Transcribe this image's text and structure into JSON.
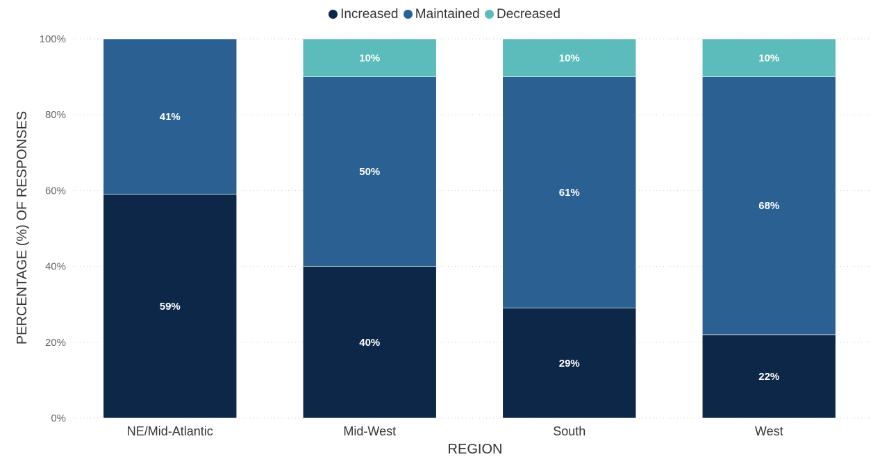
{
  "chart_data": {
    "type": "bar",
    "stacked": true,
    "title": "",
    "xlabel": "REGION",
    "ylabel": "PERCENTAGE (%) OF RESPONSES",
    "ylim": [
      0,
      100
    ],
    "yticks": [
      "0%",
      "20%",
      "40%",
      "60%",
      "80%",
      "100%"
    ],
    "grid": "horizontal dotted",
    "legend_position": "top-center",
    "categories": [
      "NE/Mid-Atlantic",
      "Mid-West",
      "South",
      "West"
    ],
    "series": [
      {
        "name": "Increased",
        "color": "#0d2748",
        "values": [
          59,
          40,
          29,
          22
        ],
        "labels": [
          "59%",
          "40%",
          "29%",
          "22%"
        ]
      },
      {
        "name": "Maintained",
        "color": "#2b6093",
        "values": [
          41,
          50,
          61,
          68
        ],
        "labels": [
          "41%",
          "50%",
          "61%",
          "68%"
        ]
      },
      {
        "name": "Decreased",
        "color": "#5bbcbb",
        "values": [
          0,
          10,
          10,
          10
        ],
        "labels": [
          "",
          "10%",
          "10%",
          "10%"
        ]
      }
    ]
  }
}
